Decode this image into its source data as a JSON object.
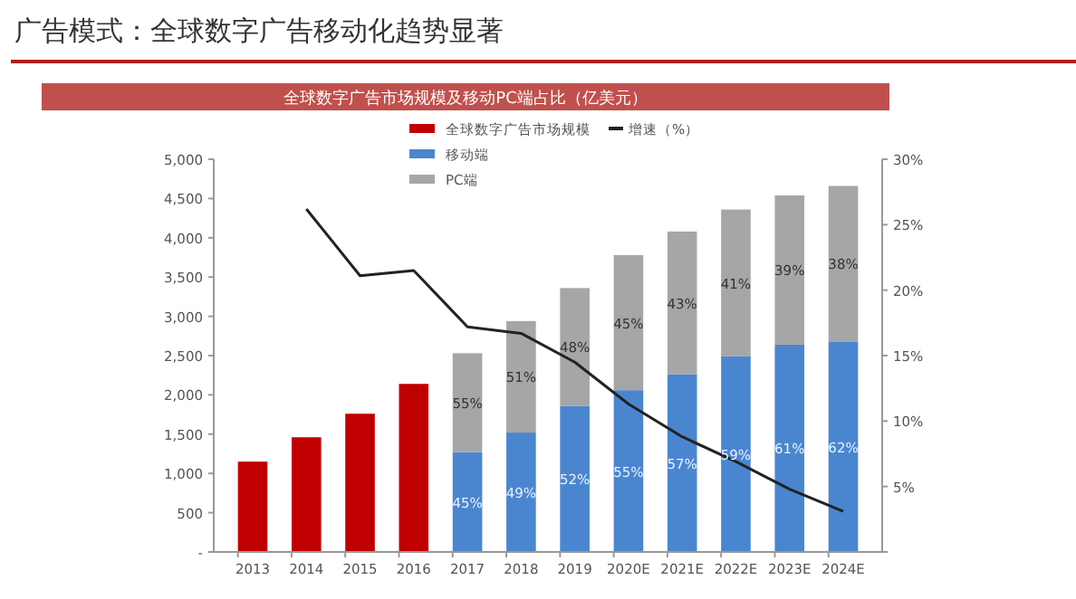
{
  "chart_data": {
    "type": "bar",
    "title": "广告模式：全球数字广告移动化趋势显著",
    "subtitle": "全球数字广告市场规模及移动PC端占比（亿美元）",
    "categories": [
      "2013",
      "2014",
      "2015",
      "2016",
      "2017",
      "2018",
      "2019",
      "2020E",
      "2021E",
      "2022E",
      "2023E",
      "2024E"
    ],
    "stacked": true,
    "legend": "top",
    "grid": false,
    "series": [
      {
        "name": "全球数字广告市场规模",
        "color": "#c00000",
        "values": [
          1150,
          1460,
          1760,
          2140,
          null,
          null,
          null,
          null,
          null,
          null,
          null,
          null
        ]
      },
      {
        "name": "移动端",
        "color": "#4a86d0",
        "values": [
          null,
          null,
          null,
          null,
          1270,
          1520,
          1860,
          2060,
          2260,
          2490,
          2640,
          2680
        ]
      },
      {
        "name": "PC端",
        "color": "#a6a6a6",
        "values": [
          null,
          null,
          null,
          null,
          1260,
          1420,
          1500,
          1720,
          1820,
          1870,
          1900,
          1980
        ]
      },
      {
        "name": "增速（%）",
        "type": "line",
        "axis": "y2",
        "color": "#222222",
        "marker": "none",
        "values": [
          null,
          26.2,
          21.1,
          21.5,
          17.2,
          16.7,
          14.5,
          11.3,
          8.8,
          6.9,
          4.8,
          3.1
        ]
      }
    ],
    "annotations": [
      "45%",
      "49%",
      "52%",
      "55%",
      "57%",
      "59%",
      "61%",
      "62%",
      "55%",
      "51%",
      "48%",
      "45%",
      "43%",
      "41%",
      "39%",
      "38%"
    ],
    "ylim": [
      0,
      5000
    ],
    "yticks": [
      {
        "value": 0,
        "label": "-"
      },
      {
        "value": 500,
        "label": "500"
      },
      {
        "value": 1000,
        "label": "1,000"
      },
      {
        "value": 1500,
        "label": "1,500"
      },
      {
        "value": 2000,
        "label": "2,000"
      },
      {
        "value": 2500,
        "label": "2,500"
      },
      {
        "value": 3000,
        "label": "3,000"
      },
      {
        "value": 3500,
        "label": "3,500"
      },
      {
        "value": 4000,
        "label": "4,000"
      },
      {
        "value": 4500,
        "label": "4,500"
      },
      {
        "value": 5000,
        "label": "5,000"
      }
    ],
    "y2lim": [
      0,
      30
    ],
    "y2ticks": [
      {
        "value": 0,
        "label": null
      },
      {
        "value": 5,
        "label": "5%"
      },
      {
        "value": 10,
        "label": "10%"
      },
      {
        "value": 15,
        "label": "15%"
      },
      {
        "value": 20,
        "label": "20%"
      },
      {
        "value": 25,
        "label": "25%"
      },
      {
        "value": 30,
        "label": "30%"
      }
    ]
  }
}
